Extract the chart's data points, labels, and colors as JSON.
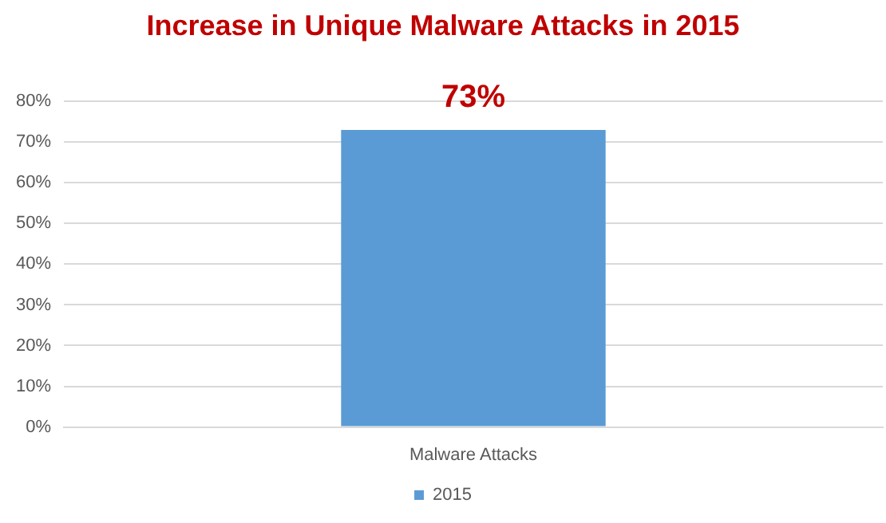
{
  "chart_data": {
    "type": "bar",
    "title": "Increase in Unique Malware Attacks in 2015",
    "categories": [
      "Malware Attacks"
    ],
    "series": [
      {
        "name": "2015",
        "color": "#5b9bd5",
        "values": [
          73
        ],
        "value_labels": [
          "73%"
        ]
      }
    ],
    "ylim": [
      0,
      80
    ],
    "yticks": [
      {
        "value": 0,
        "label": "0%"
      },
      {
        "value": 10,
        "label": "10%"
      },
      {
        "value": 20,
        "label": "20%"
      },
      {
        "value": 30,
        "label": "30%"
      },
      {
        "value": 40,
        "label": "40%"
      },
      {
        "value": 50,
        "label": "50%"
      },
      {
        "value": 60,
        "label": "60%"
      },
      {
        "value": 70,
        "label": "70%"
      },
      {
        "value": 80,
        "label": "80%"
      }
    ],
    "grid": "y",
    "legend": "bottom"
  }
}
